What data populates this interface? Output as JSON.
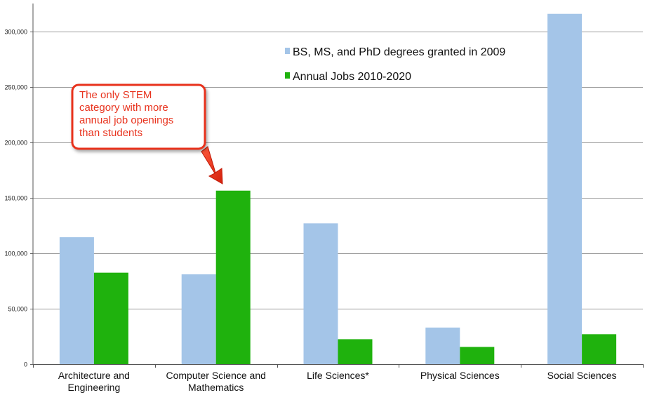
{
  "chart_data": {
    "type": "bar",
    "title": "",
    "xlabel": "",
    "ylabel": "",
    "categories": [
      "Architecture and Engineering",
      "Computer Science and Mathematics",
      "Life Sciences*",
      "Physical Sciences",
      "Social Sciences"
    ],
    "category_label_lines": [
      [
        "Architecture and",
        "Engineering"
      ],
      [
        "Computer Science and",
        "Mathematics"
      ],
      [
        "Life Sciences*"
      ],
      [
        "Physical Sciences"
      ],
      [
        "Social Sciences"
      ]
    ],
    "series": [
      {
        "name": "BS, MS, and PhD degrees granted in 2009",
        "color": "#a4c5e8",
        "values": [
          114500,
          81000,
          127000,
          33000,
          316000
        ]
      },
      {
        "name": "Annual Jobs 2010-2020",
        "color": "#1fb20d",
        "values": [
          82500,
          156500,
          22500,
          15500,
          27000
        ]
      }
    ],
    "ylim": [
      0,
      300000
    ],
    "yticks": [
      0,
      50000,
      100000,
      150000,
      200000,
      250000,
      300000
    ],
    "ytick_labels": [
      "0",
      "50,000",
      "100,000",
      "150,000",
      "200,000",
      "250,000",
      "300,000"
    ],
    "grid": true,
    "legend_position": "top-right",
    "annotation": {
      "lines": [
        "The only STEM",
        "category with more",
        "annual job openings",
        "than students"
      ],
      "target_category": "Computer Science and Mathematics",
      "border_color": "#e8331e",
      "text_color": "#e8331e"
    }
  }
}
